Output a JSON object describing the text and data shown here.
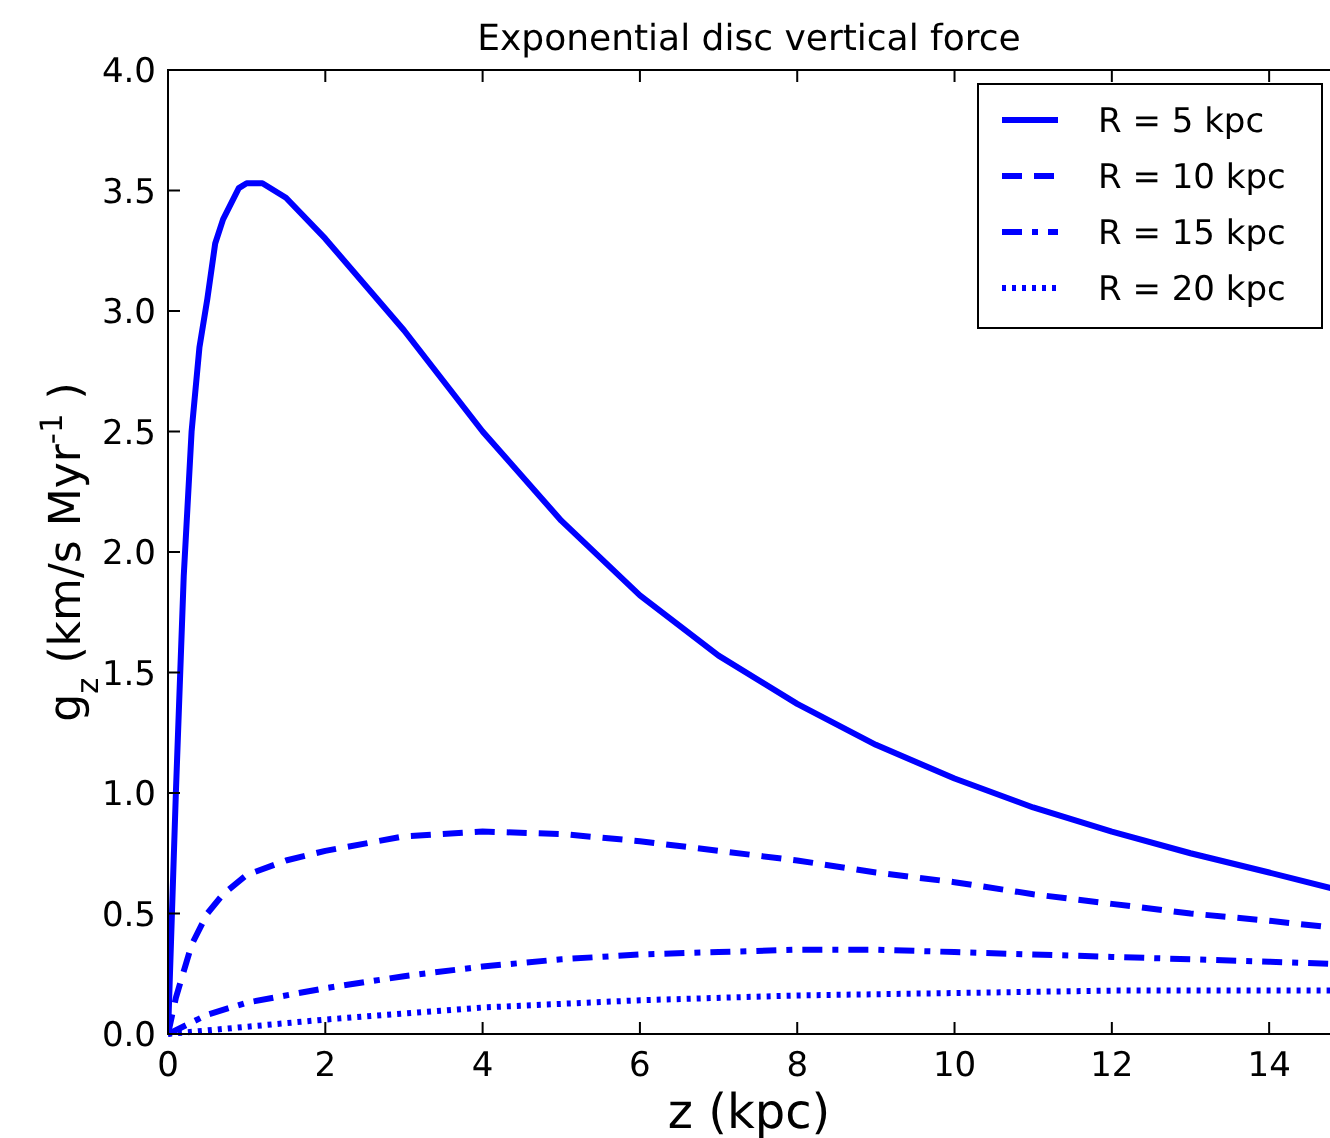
{
  "chart_data": {
    "type": "line",
    "title": "Exponential disc vertical force",
    "xlabel": "z (kpc)",
    "ylabel": "g$_{z}$  (km/s Myr$^{-1}$ )",
    "xlim": [
      0,
      14.85
    ],
    "ylim": [
      0,
      4.0
    ],
    "xticks": [
      0,
      2,
      4,
      6,
      8,
      10,
      12,
      14
    ],
    "yticks": [
      {
        "value": 0,
        "label": "0.0"
      },
      {
        "value": 0.5,
        "label": "0.5"
      },
      {
        "value": 1,
        "label": "1.0"
      },
      {
        "value": 1.5,
        "label": "1.5"
      },
      {
        "value": 2,
        "label": "2.0"
      },
      {
        "value": 2.5,
        "label": "2.5"
      },
      {
        "value": 3,
        "label": "3.0"
      },
      {
        "value": 3.5,
        "label": "3.5"
      },
      {
        "value": 4,
        "label": "4.0"
      }
    ],
    "grid": false,
    "legend": "top right",
    "series": [
      {
        "name": "R = 5 kpc",
        "color": "#0000ff",
        "line_style": "solid",
        "x": [
          0,
          0.1,
          0.2,
          0.3,
          0.4,
          0.5,
          0.6,
          0.7,
          0.9,
          1.0,
          1.2,
          1.5,
          2,
          3,
          4,
          5,
          6,
          7,
          8,
          9,
          10,
          11,
          12,
          13,
          14,
          14.85
        ],
        "values": [
          0,
          1.0,
          1.9,
          2.5,
          2.85,
          3.05,
          3.28,
          3.38,
          3.51,
          3.53,
          3.53,
          3.47,
          3.3,
          2.92,
          2.5,
          2.13,
          1.82,
          1.57,
          1.37,
          1.2,
          1.06,
          0.94,
          0.84,
          0.75,
          0.67,
          0.6
        ]
      },
      {
        "name": "R = 10 kpc",
        "color": "#0000ff",
        "line_style": "dashed",
        "x": [
          0,
          0.1,
          0.3,
          0.5,
          0.7,
          1,
          1.5,
          2,
          3,
          4,
          5,
          6,
          7,
          8,
          9,
          10,
          11,
          12,
          13,
          14,
          14.85
        ],
        "values": [
          0,
          0.15,
          0.37,
          0.5,
          0.58,
          0.66,
          0.72,
          0.76,
          0.82,
          0.84,
          0.83,
          0.8,
          0.76,
          0.72,
          0.67,
          0.63,
          0.58,
          0.54,
          0.5,
          0.47,
          0.44
        ]
      },
      {
        "name": "R = 15 kpc",
        "color": "#0000ff",
        "line_style": "dashdot",
        "x": [
          0,
          0.5,
          1,
          2,
          3,
          4,
          5,
          6,
          7,
          8,
          9,
          10,
          11,
          12,
          13,
          14,
          14.85
        ],
        "values": [
          0,
          0.08,
          0.13,
          0.19,
          0.24,
          0.28,
          0.31,
          0.33,
          0.34,
          0.35,
          0.35,
          0.34,
          0.33,
          0.32,
          0.31,
          0.3,
          0.29
        ]
      },
      {
        "name": "R = 20 kpc",
        "color": "#0000ff",
        "line_style": "dotted",
        "x": [
          0,
          1,
          2,
          4,
          6,
          8,
          10,
          12,
          14,
          14.85
        ],
        "values": [
          0,
          0.03,
          0.06,
          0.11,
          0.14,
          0.16,
          0.17,
          0.18,
          0.18,
          0.18
        ]
      }
    ]
  }
}
